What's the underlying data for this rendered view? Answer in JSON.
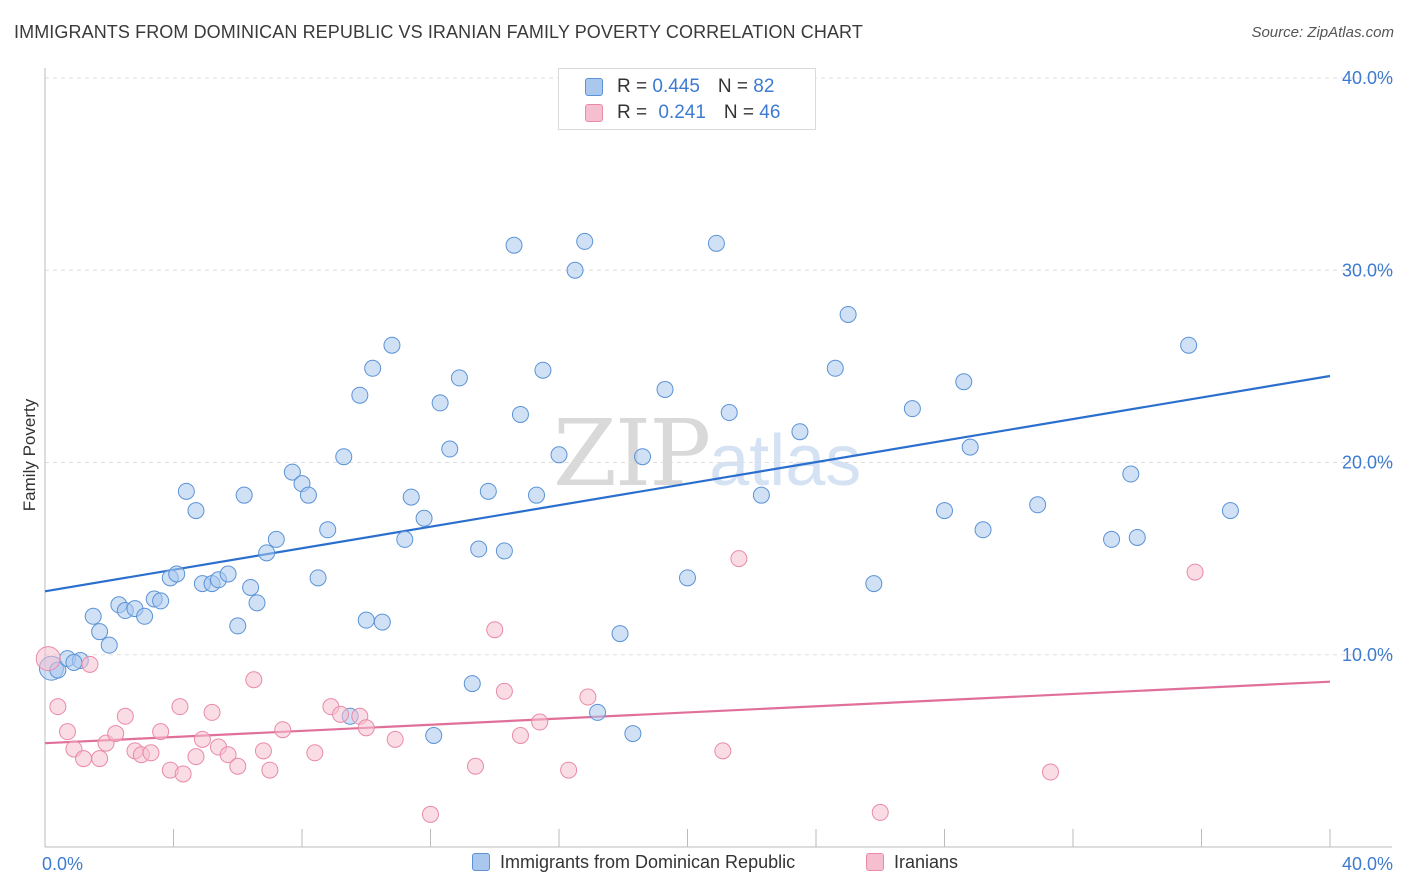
{
  "title": "IMMIGRANTS FROM DOMINICAN REPUBLIC VS IRANIAN FAMILY POVERTY CORRELATION CHART",
  "source": "Source: ZipAtlas.com",
  "watermark": {
    "zip": "ZIP",
    "atlas": "atlas"
  },
  "colors": {
    "blue_fill": "#aac8ee",
    "blue_stroke": "#5b93d6",
    "blue_line": "#2b6fce",
    "pink_fill": "#f6bfd0",
    "pink_stroke": "#e98aa9",
    "pink_line": "#e0709a",
    "tick_text": "#3d7bd0",
    "grid": "#dddddd"
  },
  "legend_top": {
    "rows": [
      {
        "r_label": "R = ",
        "r_value": "0.445",
        "n_label": "N = ",
        "n_value": "82"
      },
      {
        "r_label": "R = ",
        "r_value": "0.241",
        "n_label": "N = ",
        "n_value": "46"
      }
    ]
  },
  "legend_bottom": [
    {
      "label": "Immigrants from Dominican Republic"
    },
    {
      "label": "Iranians"
    }
  ],
  "chart_data": {
    "type": "scatter",
    "title": "IMMIGRANTS FROM DOMINICAN REPUBLIC VS IRANIAN FAMILY POVERTY CORRELATION CHART",
    "xlabel": "",
    "ylabel": "Family Poverty",
    "xlim": [
      0,
      40
    ],
    "ylim": [
      0,
      40
    ],
    "x_tick_labels": [
      {
        "value": 0,
        "label": "0.0%"
      },
      {
        "value": 40,
        "label": "40.0%"
      }
    ],
    "y_tick_labels": [
      {
        "value": 10,
        "label": "10.0%"
      },
      {
        "value": 20,
        "label": "20.0%"
      },
      {
        "value": 30,
        "label": "30.0%"
      },
      {
        "value": 40,
        "label": "40.0%"
      }
    ],
    "y_gridlines": [
      10,
      20,
      30,
      40
    ],
    "series": [
      {
        "name": "Immigrants from Dominican Republic",
        "R": 0.445,
        "N": 82,
        "trend": {
          "x": [
            0,
            40
          ],
          "y": [
            13.3,
            24.5
          ]
        },
        "points": [
          [
            0.2,
            9.3
          ],
          [
            0.4,
            9.2
          ],
          [
            0.7,
            9.8
          ],
          [
            1.1,
            9.7
          ],
          [
            0.9,
            9.6
          ],
          [
            1.5,
            12.0
          ],
          [
            1.7,
            11.2
          ],
          [
            2.0,
            10.5
          ],
          [
            2.3,
            12.6
          ],
          [
            2.5,
            12.3
          ],
          [
            2.8,
            12.4
          ],
          [
            3.1,
            12.0
          ],
          [
            3.4,
            12.9
          ],
          [
            3.6,
            12.8
          ],
          [
            3.9,
            14.0
          ],
          [
            4.1,
            14.2
          ],
          [
            4.4,
            18.5
          ],
          [
            4.7,
            17.5
          ],
          [
            4.9,
            13.7
          ],
          [
            5.2,
            13.7
          ],
          [
            5.4,
            13.9
          ],
          [
            5.7,
            14.2
          ],
          [
            6.0,
            11.5
          ],
          [
            6.2,
            18.3
          ],
          [
            6.4,
            13.5
          ],
          [
            6.6,
            12.7
          ],
          [
            6.9,
            15.3
          ],
          [
            7.2,
            16.0
          ],
          [
            7.7,
            19.5
          ],
          [
            8.0,
            18.9
          ],
          [
            8.2,
            18.3
          ],
          [
            8.5,
            14.0
          ],
          [
            8.8,
            16.5
          ],
          [
            9.3,
            20.3
          ],
          [
            9.5,
            6.8
          ],
          [
            9.8,
            23.5
          ],
          [
            10.0,
            11.8
          ],
          [
            10.2,
            24.9
          ],
          [
            10.5,
            11.7
          ],
          [
            10.8,
            26.1
          ],
          [
            11.2,
            16.0
          ],
          [
            11.4,
            18.2
          ],
          [
            11.8,
            17.1
          ],
          [
            12.1,
            5.8
          ],
          [
            12.3,
            23.1
          ],
          [
            12.6,
            20.7
          ],
          [
            12.9,
            24.4
          ],
          [
            13.3,
            8.5
          ],
          [
            13.5,
            15.5
          ],
          [
            13.8,
            18.5
          ],
          [
            14.3,
            15.4
          ],
          [
            14.6,
            31.3
          ],
          [
            14.8,
            22.5
          ],
          [
            15.3,
            18.3
          ],
          [
            15.5,
            24.8
          ],
          [
            16.0,
            20.4
          ],
          [
            16.5,
            30.0
          ],
          [
            16.8,
            31.5
          ],
          [
            17.2,
            7.0
          ],
          [
            17.9,
            11.1
          ],
          [
            18.3,
            5.9
          ],
          [
            18.6,
            20.3
          ],
          [
            19.3,
            23.8
          ],
          [
            20.0,
            14.0
          ],
          [
            20.9,
            31.4
          ],
          [
            21.3,
            22.6
          ],
          [
            22.3,
            18.3
          ],
          [
            23.5,
            21.6
          ],
          [
            24.6,
            24.9
          ],
          [
            25.0,
            27.7
          ],
          [
            25.8,
            13.7
          ],
          [
            27.0,
            22.8
          ],
          [
            28.0,
            17.5
          ],
          [
            28.6,
            24.2
          ],
          [
            28.8,
            20.8
          ],
          [
            29.2,
            16.5
          ],
          [
            30.9,
            17.8
          ],
          [
            33.2,
            16.0
          ],
          [
            33.8,
            19.4
          ],
          [
            34.0,
            16.1
          ],
          [
            35.6,
            26.1
          ],
          [
            36.9,
            17.5
          ]
        ]
      },
      {
        "name": "Iranians",
        "R": 0.241,
        "N": 46,
        "trend": {
          "x": [
            0,
            40
          ],
          "y": [
            5.4,
            8.6
          ]
        },
        "points": [
          [
            0.1,
            9.8
          ],
          [
            0.4,
            7.3
          ],
          [
            0.7,
            6.0
          ],
          [
            0.9,
            5.1
          ],
          [
            1.2,
            4.6
          ],
          [
            1.4,
            9.5
          ],
          [
            1.7,
            4.6
          ],
          [
            1.9,
            5.4
          ],
          [
            2.2,
            5.9
          ],
          [
            2.5,
            6.8
          ],
          [
            2.8,
            5.0
          ],
          [
            3.0,
            4.8
          ],
          [
            3.3,
            4.9
          ],
          [
            3.6,
            6.0
          ],
          [
            3.9,
            4.0
          ],
          [
            4.2,
            7.3
          ],
          [
            4.3,
            3.8
          ],
          [
            4.7,
            4.7
          ],
          [
            4.9,
            5.6
          ],
          [
            5.2,
            7.0
          ],
          [
            5.4,
            5.2
          ],
          [
            5.7,
            4.8
          ],
          [
            6.0,
            4.2
          ],
          [
            6.5,
            8.7
          ],
          [
            6.8,
            5.0
          ],
          [
            7.0,
            4.0
          ],
          [
            7.4,
            6.1
          ],
          [
            8.4,
            4.9
          ],
          [
            8.9,
            7.3
          ],
          [
            9.2,
            6.9
          ],
          [
            9.8,
            6.8
          ],
          [
            10.0,
            6.2
          ],
          [
            10.9,
            5.6
          ],
          [
            12.0,
            1.7
          ],
          [
            13.4,
            4.2
          ],
          [
            14.0,
            11.3
          ],
          [
            14.3,
            8.1
          ],
          [
            14.8,
            5.8
          ],
          [
            15.4,
            6.5
          ],
          [
            16.3,
            4.0
          ],
          [
            16.9,
            7.8
          ],
          [
            21.1,
            5.0
          ],
          [
            21.6,
            15.0
          ],
          [
            26.0,
            1.8
          ],
          [
            31.3,
            3.9
          ],
          [
            35.8,
            14.3
          ]
        ]
      }
    ]
  }
}
